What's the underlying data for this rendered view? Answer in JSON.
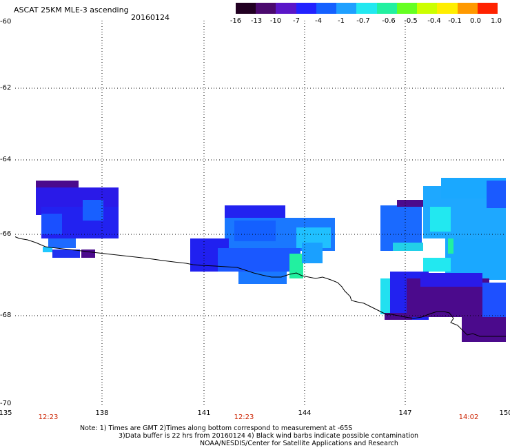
{
  "header": {
    "title": "ASCAT 25KM MLE-3 ascending",
    "date": "20160124"
  },
  "colorbar": {
    "labels": [
      "-16",
      "-13",
      "-10",
      "-7",
      "-4",
      "-1",
      "-0.7",
      "-0.6",
      "-0.5",
      "-0.4",
      "-0.1",
      "0.0",
      "1.0"
    ],
    "colors": [
      "#220022",
      "#4b0a6e",
      "#5a16c8",
      "#2222ff",
      "#1460ff",
      "#1ea0ff",
      "#22e8f0",
      "#22f0a0",
      "#66ff22",
      "#ccff00",
      "#ffee00",
      "#ff9900",
      "#ff2200"
    ]
  },
  "axes": {
    "lon_ticks": [
      "135",
      "138",
      "141",
      "144",
      "147",
      "150"
    ],
    "lat_ticks": [
      "-60",
      "-62",
      "-64",
      "-66",
      "-68",
      "-70"
    ]
  },
  "pass_times": [
    {
      "label": "12:23",
      "lon": 136.0
    },
    {
      "label": "12:23",
      "lon": 142.0
    },
    {
      "label": "14:02",
      "lon": 148.8
    }
  ],
  "notes": {
    "line1": "Note: 1) Times are GMT 2)Times along bottom correspond to measurement at -65S",
    "line2": "3)Data buffer is 22 hrs from 20160124 4) Black wind barbs indicate possible contamination",
    "line3": "NOAA/NESDIS/Center for Satellite Applications and Research"
  }
}
